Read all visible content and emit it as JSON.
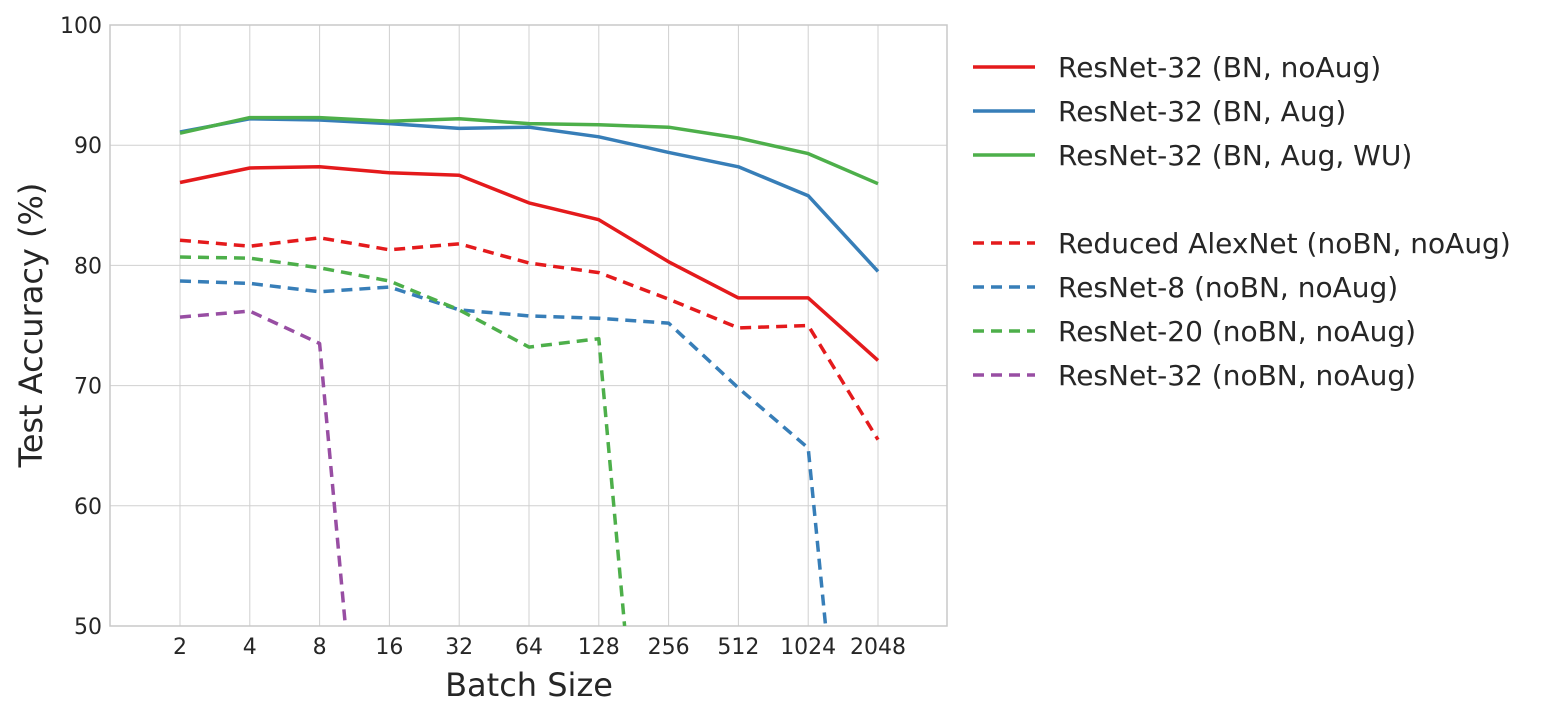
{
  "chart_data": {
    "type": "line",
    "xlabel": "Batch Size",
    "ylabel": "Test Accuracy (%)",
    "ylim": [
      50,
      100
    ],
    "yticks": [
      50,
      60,
      70,
      80,
      90,
      100
    ],
    "categories": [
      "2",
      "4",
      "8",
      "16",
      "32",
      "64",
      "128",
      "256",
      "512",
      "1024",
      "2048"
    ],
    "grid": true,
    "legend_position": "outside-right",
    "series": [
      {
        "name": "ResNet-32 (BN, noAug)",
        "color": "#e41a1c",
        "style": "solid",
        "points": [
          [
            0,
            86.9
          ],
          [
            1,
            88.1
          ],
          [
            2,
            88.2
          ],
          [
            3,
            87.7
          ],
          [
            4,
            87.5
          ],
          [
            5,
            85.2
          ],
          [
            6,
            83.8
          ],
          [
            7,
            80.3
          ],
          [
            8,
            77.3
          ],
          [
            9,
            77.3
          ],
          [
            10,
            72.1
          ]
        ]
      },
      {
        "name": "ResNet-32 (BN, Aug)",
        "color": "#377eb8",
        "style": "solid",
        "points": [
          [
            0,
            91.1
          ],
          [
            1,
            92.2
          ],
          [
            2,
            92.1
          ],
          [
            3,
            91.8
          ],
          [
            4,
            91.4
          ],
          [
            5,
            91.5
          ],
          [
            6,
            90.7
          ],
          [
            7,
            89.4
          ],
          [
            8,
            88.2
          ],
          [
            9,
            85.8
          ],
          [
            10,
            79.5
          ]
        ]
      },
      {
        "name": "ResNet-32 (BN, Aug, WU)",
        "color": "#4daf4a",
        "style": "solid",
        "points": [
          [
            0,
            91.0
          ],
          [
            1,
            92.3
          ],
          [
            2,
            92.3
          ],
          [
            3,
            92.0
          ],
          [
            4,
            92.2
          ],
          [
            5,
            91.8
          ],
          [
            6,
            91.7
          ],
          [
            7,
            91.5
          ],
          [
            8,
            90.6
          ],
          [
            9,
            89.3
          ],
          [
            10,
            86.8
          ]
        ]
      },
      {
        "name": "Reduced AlexNet (noBN, noAug)",
        "color": "#e41a1c",
        "style": "dashed",
        "points": [
          [
            0,
            82.1
          ],
          [
            1,
            81.6
          ],
          [
            2,
            82.3
          ],
          [
            3,
            81.3
          ],
          [
            4,
            81.8
          ],
          [
            5,
            80.2
          ],
          [
            6,
            79.4
          ],
          [
            7,
            77.2
          ],
          [
            8,
            74.8
          ],
          [
            9,
            75.0
          ],
          [
            10,
            65.5
          ]
        ]
      },
      {
        "name": "ResNet-8 (noBN, noAug)",
        "color": "#377eb8",
        "style": "dashed",
        "points": [
          [
            0,
            78.7
          ],
          [
            1,
            78.5
          ],
          [
            2,
            77.8
          ],
          [
            3,
            78.2
          ],
          [
            4,
            76.3
          ],
          [
            5,
            75.8
          ],
          [
            6,
            75.6
          ],
          [
            7,
            75.2
          ],
          [
            8,
            69.8
          ],
          [
            9,
            64.8
          ],
          [
            9.25,
            50.0
          ]
        ]
      },
      {
        "name": "ResNet-20 (noBN, noAug)",
        "color": "#4daf4a",
        "style": "dashed",
        "points": [
          [
            0,
            80.7
          ],
          [
            1,
            80.6
          ],
          [
            2,
            79.8
          ],
          [
            3,
            78.7
          ],
          [
            4,
            76.3
          ],
          [
            5,
            73.2
          ],
          [
            6,
            73.9
          ],
          [
            6.37,
            50.0
          ]
        ]
      },
      {
        "name": "ResNet-32 (noBN, noAug)",
        "color": "#984ea3",
        "style": "dashed",
        "points": [
          [
            0,
            75.7
          ],
          [
            1,
            76.2
          ],
          [
            2,
            73.5
          ],
          [
            2.37,
            50.0
          ]
        ]
      }
    ]
  }
}
